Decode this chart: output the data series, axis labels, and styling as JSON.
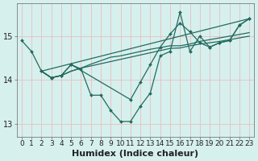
{
  "xlabel": "Humidex (Indice chaleur)",
  "bg_color": "#d6f0ee",
  "line_color": "#226b5e",
  "grid_color": "#e8c8c8",
  "xlim": [
    -0.5,
    23.5
  ],
  "ylim": [
    12.7,
    15.75
  ],
  "yticks": [
    13,
    14,
    15
  ],
  "xticks": [
    0,
    1,
    2,
    3,
    4,
    5,
    6,
    7,
    8,
    9,
    10,
    11,
    12,
    13,
    14,
    15,
    16,
    17,
    18,
    19,
    20,
    21,
    22,
    23
  ],
  "xlabel_fontsize": 8,
  "tick_fontsize": 6.5,
  "line1_x": [
    0,
    1,
    2,
    3,
    4,
    5,
    6,
    7,
    8,
    9,
    10,
    11,
    12,
    13,
    14,
    15,
    16,
    17,
    18,
    19,
    20,
    21,
    22,
    23
  ],
  "line1_y": [
    14.9,
    14.65,
    14.2,
    14.05,
    14.1,
    14.35,
    14.25,
    13.65,
    13.65,
    13.3,
    13.05,
    13.05,
    13.4,
    13.7,
    14.55,
    14.65,
    15.55,
    14.65,
    15.0,
    14.75,
    14.85,
    14.9,
    15.25,
    15.4
  ],
  "line2_x": [
    2,
    3,
    4,
    5,
    6,
    7,
    8,
    9,
    10,
    11,
    12,
    13,
    14,
    15,
    16,
    17,
    18,
    19,
    20,
    21,
    22,
    23
  ],
  "line2_y": [
    14.2,
    14.05,
    14.1,
    14.2,
    14.27,
    14.32,
    14.37,
    14.42,
    14.47,
    14.52,
    14.57,
    14.62,
    14.67,
    14.72,
    14.73,
    14.78,
    14.82,
    14.85,
    14.88,
    14.92,
    14.96,
    15.0
  ],
  "line3_x": [
    2,
    3,
    4,
    5,
    6,
    7,
    8,
    9,
    10,
    11,
    12,
    13,
    14,
    15,
    16,
    17,
    18,
    19,
    20,
    21,
    22,
    23
  ],
  "line3_y": [
    14.2,
    14.05,
    14.1,
    14.2,
    14.27,
    14.36,
    14.44,
    14.52,
    14.55,
    14.6,
    14.65,
    14.7,
    14.74,
    14.78,
    14.78,
    14.82,
    14.88,
    14.92,
    14.96,
    15.0,
    15.04,
    15.08
  ],
  "line4_x": [
    2,
    3,
    4,
    5,
    11,
    12,
    13,
    14,
    15,
    16,
    17,
    18,
    19,
    20,
    21,
    22,
    23
  ],
  "line4_y": [
    14.2,
    14.05,
    14.1,
    14.35,
    13.55,
    13.95,
    14.35,
    14.75,
    15.05,
    15.3,
    15.1,
    14.85,
    14.75,
    14.85,
    14.9,
    15.25,
    15.4
  ],
  "line5_x": [
    2,
    23
  ],
  "line5_y": [
    14.2,
    15.4
  ]
}
